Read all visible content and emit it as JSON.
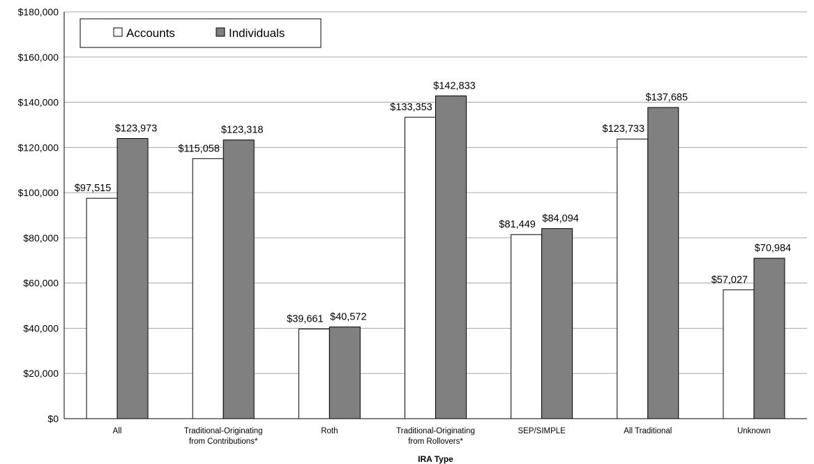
{
  "chart_data": {
    "type": "bar",
    "categories": [
      [
        "All"
      ],
      [
        "Traditional-Originating",
        "from Contributions*"
      ],
      [
        "Roth"
      ],
      [
        "Traditional-Originating",
        "from Rollovers*"
      ],
      [
        "SEP/SIMPLE"
      ],
      [
        "All Traditional"
      ],
      [
        "Unknown"
      ]
    ],
    "series": [
      {
        "name": "Accounts",
        "color": "#ffffff",
        "values": [
          97515,
          115058,
          39661,
          133353,
          81449,
          123733,
          57027
        ],
        "labels": [
          "$97,515",
          "$115,058",
          "$39,661",
          "$133,353",
          "$81,449",
          "$123,733",
          "$57,027"
        ]
      },
      {
        "name": "Individuals",
        "color": "#808080",
        "values": [
          123973,
          123318,
          40572,
          142833,
          84094,
          137685,
          70984
        ],
        "labels": [
          "$123,973",
          "$123,318",
          "$40,572",
          "$142,833",
          "$84,094",
          "$137,685",
          "$70,984"
        ]
      }
    ],
    "xlabel": "IRA Type",
    "ylabel": "",
    "ylim": [
      0,
      180000
    ],
    "yticks": [
      0,
      20000,
      40000,
      60000,
      80000,
      100000,
      120000,
      140000,
      160000,
      180000
    ],
    "ytick_labels": [
      "$0",
      "$20,000",
      "$40,000",
      "$60,000",
      "$80,000",
      "$100,000",
      "$120,000",
      "$140,000",
      "$160,000",
      "$180,000"
    ],
    "grid": true,
    "legend_position": "top-left"
  }
}
